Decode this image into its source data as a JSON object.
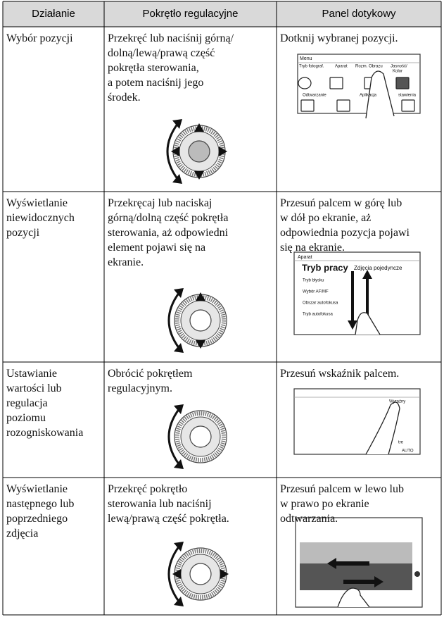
{
  "table": {
    "header": [
      "Działanie",
      "Pokrętło regulacyjne",
      "Panel dotykowy"
    ],
    "rows": [
      {
        "action": [
          "Wybór pozycji"
        ],
        "dial": [
          "Przekręć lub naciśnij górną/",
          "dolną/lewą/prawą część",
          "pokrętła sterowania,",
          "a potem naciśnij jego",
          "środek."
        ],
        "touch": [
          "Dotknij wybranej pozycji."
        ],
        "screen": [
          "Menu",
          "Tryb fotograf.",
          "Aparat",
          "Rozm. Obrazu",
          "Jasność/",
          "Kolor",
          "Odtwarzanie",
          "Aplikacja",
          "stawienia"
        ]
      },
      {
        "action": [
          "Wyświetlanie",
          "niewidocznych",
          "pozycji"
        ],
        "dial": [
          "Przekręcaj lub naciskaj",
          "górną/dolną część pokrętła",
          "sterowania, aż odpowiedni",
          "element pojawi się na",
          "ekranie."
        ],
        "touch": [
          "Przesuń palcem w górę lub",
          "w dół po ekranie, aż",
          "odpowiednia pozycja pojawi",
          "się na ekranie."
        ],
        "screen": [
          "Aparat",
          "Tryb pracy",
          "Zdjęcia pojedyncze",
          "Tryb błysku",
          "Wybór AF/MF",
          "Obszar autofokusa",
          "Tryb autofokusa"
        ]
      },
      {
        "action": [
          "Ustawianie",
          "wartości lub",
          "regulacja",
          "poziomu",
          "rozogniskowania"
        ],
        "dial": [
          "Obrócić pokrętłem",
          "regulacyjnym."
        ],
        "touch": [
          "Przesuń wskaźnik palcem."
        ],
        "screen": [
          "Wyraźny",
          "tre",
          "AUTO"
        ]
      },
      {
        "action": [
          "Wyświetlanie",
          "następnego lub",
          "poprzedniego",
          "zdjęcia"
        ],
        "dial": [
          "Przekręć pokrętło",
          "sterowania lub naciśnij",
          "lewą/prawą część pokrętła."
        ],
        "touch": [
          "Przesuń palcem w lewo lub",
          "w prawo po ekranie",
          "odtwarzania."
        ],
        "screen": []
      }
    ]
  }
}
